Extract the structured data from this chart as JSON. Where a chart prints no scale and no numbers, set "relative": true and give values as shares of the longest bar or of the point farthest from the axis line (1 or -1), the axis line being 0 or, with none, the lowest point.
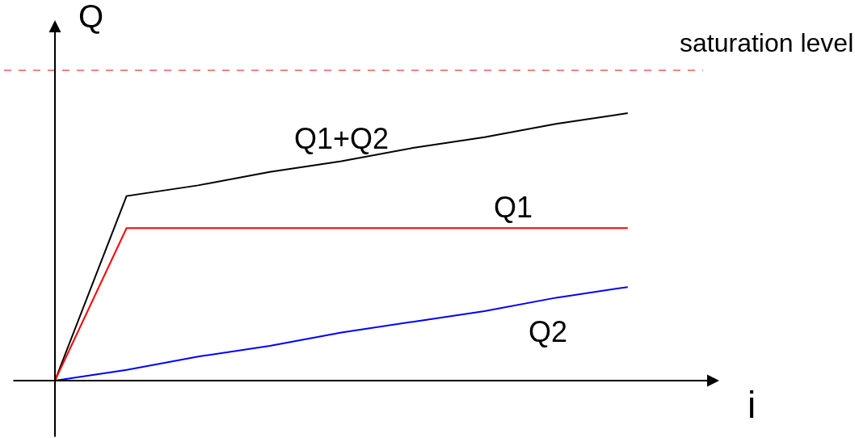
{
  "chart_data": {
    "type": "line",
    "relative": true,
    "xlabel": "i",
    "ylabel": "Q",
    "categories": [
      null,
      null,
      null,
      null,
      null,
      null,
      null,
      null,
      null
    ],
    "series": [
      {
        "name": "Q1+Q2",
        "color": "#000000",
        "values": [
          0,
          0.69,
          0.73,
          0.78,
          0.82,
          0.87,
          0.91,
          0.96,
          1.0
        ]
      },
      {
        "name": "Q1",
        "color": "#ff0000",
        "values": [
          0,
          0.57,
          0.57,
          0.57,
          0.57,
          0.57,
          0.57,
          0.57,
          0.57
        ]
      },
      {
        "name": "Q2",
        "color": "#0000ff",
        "values": [
          0,
          0.04,
          0.09,
          0.13,
          0.18,
          0.22,
          0.26,
          0.31,
          0.35
        ]
      }
    ],
    "ref_lines": [
      {
        "axis": "y",
        "value": 1.16,
        "label": "saturation level",
        "color": "#ff0000",
        "line_style": "dashed"
      }
    ],
    "legend": false,
    "marker": "none",
    "line_style": "solid"
  }
}
